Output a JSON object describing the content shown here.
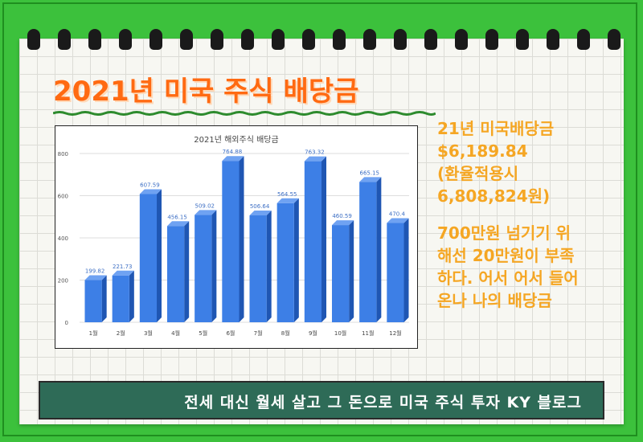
{
  "title": "2021년 미국 주식 배당금",
  "side": {
    "line1": "21년 미국배당금",
    "line2": "$6,189.84",
    "line3": "(환율적용시",
    "line4": "6,808,824원)",
    "line5": "700만원 넘기기 위",
    "line6": "해선 20만원이 부족",
    "line7": "하다. 어서 어서 들어",
    "line8": "온나 나의 배당금"
  },
  "footer": "전세 대신 월세 살고 그 돈으로 미국 주식 투자 KY 블로그",
  "colors": {
    "title": "#ff6a12",
    "side_text": "#f5a623",
    "bar_front": "#3d7fe6",
    "footer_bg": "#2e6b57"
  },
  "chart_data": {
    "type": "bar",
    "title": "2021년 해외주식 배당금",
    "categories": [
      "1월",
      "2월",
      "3월",
      "4월",
      "5월",
      "6월",
      "7월",
      "8월",
      "9월",
      "10월",
      "11월",
      "12월"
    ],
    "values": [
      199.82,
      221.73,
      607.59,
      456.15,
      509.02,
      764.88,
      506.64,
      564.55,
      763.32,
      460.59,
      665.15,
      470.4
    ],
    "value_labels": [
      "199.82",
      "221.73",
      "607.59",
      "456.15",
      "509.02",
      "764.88",
      "506.64",
      "564.55",
      "763.32",
      "460.59",
      "665.15",
      "470.4"
    ],
    "ylim": [
      0,
      800
    ],
    "yticks": [
      "0",
      "200",
      "400",
      "600",
      "800"
    ],
    "grid": true
  }
}
